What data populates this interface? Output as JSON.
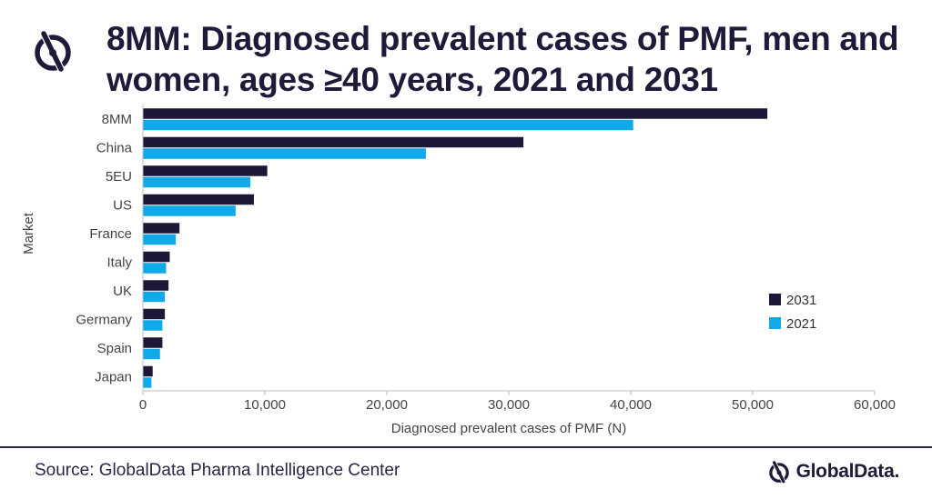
{
  "title": "8MM: Diagnosed prevalent cases of PMF, men and women, ages ≥40 years, 2021 and 2031",
  "footer": {
    "source": "Source: GlobalData Pharma Intelligence Center",
    "brand": "GlobalData."
  },
  "colors": {
    "series_2031": "#1e1838",
    "series_2021": "#10a9e9",
    "text_dark": "#1f1a3a",
    "axis": "#bfbfbf"
  },
  "icons": [
    "globaldata-logo-icon"
  ],
  "chart_data": {
    "type": "bar",
    "orientation": "horizontal",
    "categories": [
      "8MM",
      "China",
      "5EU",
      "US",
      "France",
      "Italy",
      "UK",
      "Germany",
      "Spain",
      "Japan"
    ],
    "series": [
      {
        "name": "2031",
        "values": [
          51200,
          31200,
          10200,
          9100,
          3000,
          2200,
          2100,
          1800,
          1600,
          800
        ]
      },
      {
        "name": "2021",
        "values": [
          40200,
          23200,
          8800,
          7600,
          2700,
          1900,
          1800,
          1600,
          1400,
          700
        ]
      }
    ],
    "xlabel": "Diagnosed prevalent cases of PMF (N)",
    "ylabel": "Market",
    "xlim": [
      0,
      60000
    ],
    "xticks": [
      "0",
      "10,000",
      "20,000",
      "30,000",
      "40,000",
      "50,000",
      "60,000"
    ],
    "legend_position": "right",
    "grid": false
  }
}
